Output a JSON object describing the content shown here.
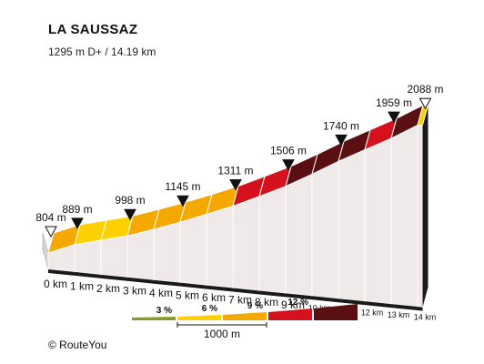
{
  "header": {
    "title": "LA SAUSSAZ",
    "subtitle": "1295 m D+ / 14.19 km"
  },
  "footer": {
    "credit": "©  RouteYou"
  },
  "colors": {
    "grade_3": "#ffd000",
    "grade_6": "#f5a800",
    "grade_9": "#d4111d",
    "grade_12": "#5a0f12",
    "legend_low": "#8a9a2a",
    "wall": "#efe9e9",
    "base": "#1a1a1a"
  },
  "chart_data": {
    "type": "area",
    "title": "LA SAUSSAZ",
    "total_ascent_m": 1295,
    "total_distance_km": 14.19,
    "x_unit": "km",
    "y_unit": "m",
    "start_elevation": {
      "km": 0,
      "elevation": 804,
      "label": "804 m"
    },
    "end_elevation": {
      "km": 14.19,
      "elevation": 2088,
      "label": "2088 m"
    },
    "km_ticks": [
      "0 km",
      "1 km",
      "2 km",
      "3 km",
      "4 km",
      "5 km",
      "6 km",
      "7 km",
      "8 km",
      "9 km",
      "10 km",
      "11 km",
      "12 km",
      "13 km",
      "14 km"
    ],
    "segments": [
      {
        "from_km": 0,
        "to_km": 1,
        "grade": 8.5,
        "elevation_end": 889,
        "label": "889 m"
      },
      {
        "from_km": 1,
        "to_km": 2,
        "grade": 5.5,
        "elevation_end": 944,
        "label": ""
      },
      {
        "from_km": 2,
        "to_km": 3,
        "grade": 5.4,
        "elevation_end": 998,
        "label": "998 m"
      },
      {
        "from_km": 3,
        "to_km": 4,
        "grade": 7.2,
        "elevation_end": 1070,
        "label": ""
      },
      {
        "from_km": 4,
        "to_km": 5,
        "grade": 7.5,
        "elevation_end": 1145,
        "label": "1145 m"
      },
      {
        "from_km": 5,
        "to_km": 6,
        "grade": 8.2,
        "elevation_end": 1227,
        "label": ""
      },
      {
        "from_km": 6,
        "to_km": 7,
        "grade": 8.4,
        "elevation_end": 1311,
        "label": "1311 m"
      },
      {
        "from_km": 7,
        "to_km": 8,
        "grade": 9.6,
        "elevation_end": 1407,
        "label": ""
      },
      {
        "from_km": 8,
        "to_km": 9,
        "grade": 9.9,
        "elevation_end": 1506,
        "label": "1506 m"
      },
      {
        "from_km": 9,
        "to_km": 10,
        "grade": 11.4,
        "elevation_end": 1620,
        "label": ""
      },
      {
        "from_km": 10,
        "to_km": 11,
        "grade": 12.0,
        "elevation_end": 1740,
        "label": "1740 m"
      },
      {
        "from_km": 11,
        "to_km": 12,
        "grade": 11.0,
        "elevation_end": 1850,
        "label": ""
      },
      {
        "from_km": 12,
        "to_km": 13,
        "grade": 10.9,
        "elevation_end": 1959,
        "label": "1959 m"
      },
      {
        "from_km": 13,
        "to_km": 14,
        "grade": 12.3,
        "elevation_end": 2082,
        "label": ""
      },
      {
        "from_km": 14,
        "to_km": 14.19,
        "grade": 3.2,
        "elevation_end": 2088,
        "label": ""
      }
    ],
    "legend": {
      "entries": [
        {
          "label": "3 %",
          "color_key": "legend_low"
        },
        {
          "label": "6 %",
          "color_key": "grade_3"
        },
        {
          "label": "9 %",
          "color_key": "grade_6"
        },
        {
          "label": "12 %",
          "color_key": "grade_9"
        },
        {
          "label": "",
          "color_key": "grade_12"
        }
      ],
      "scale_label": "1000 m"
    }
  }
}
